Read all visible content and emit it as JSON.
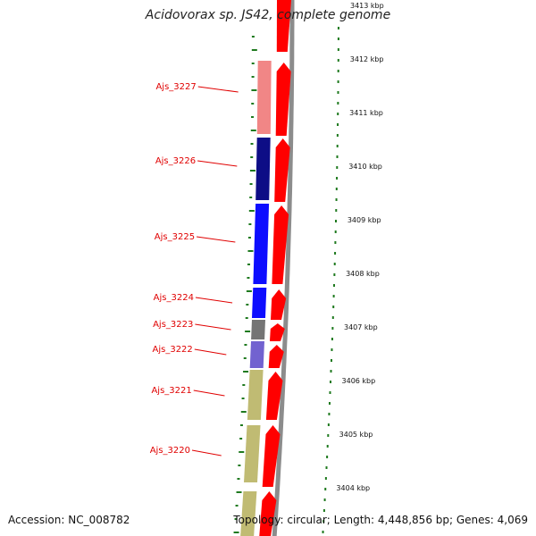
{
  "title": "Acidovorax sp. JS42, complete genome",
  "footer": {
    "accession": "Accession: NC_008782",
    "summary": "Topology: circular; Length: 4,448,856 bp; Genes: 4,069"
  },
  "colors": {
    "backbone": "#8c8c8c",
    "cds_arrow": "#ff0000",
    "gc_skew_tick": "#1f7a1f",
    "label_text": "#e00000"
  },
  "genes": [
    {
      "name": "Ajs_3227",
      "color": "#f08080"
    },
    {
      "name": "Ajs_3226",
      "color": "#000080"
    },
    {
      "name": "Ajs_3225",
      "color": "#0000ff"
    },
    {
      "name": "Ajs_3224",
      "color": "#0000ff"
    },
    {
      "name": "Ajs_3223",
      "color": "#6e6e6e"
    },
    {
      "name": "Ajs_3222",
      "color": "#6a5acd"
    },
    {
      "name": "Ajs_3221",
      "color": "#bdb76b"
    },
    {
      "name": "Ajs_3220",
      "color": "#bdb76b"
    },
    {
      "name": "",
      "color": "#bdb76b"
    }
  ],
  "position_labels": [
    "3413 kbp",
    "3412 kbp",
    "3411 kbp",
    "3410 kbp",
    "3409 kbp",
    "3408 kbp",
    "3407 kbp",
    "3406 kbp",
    "3405 kbp",
    "3404 kbp"
  ]
}
